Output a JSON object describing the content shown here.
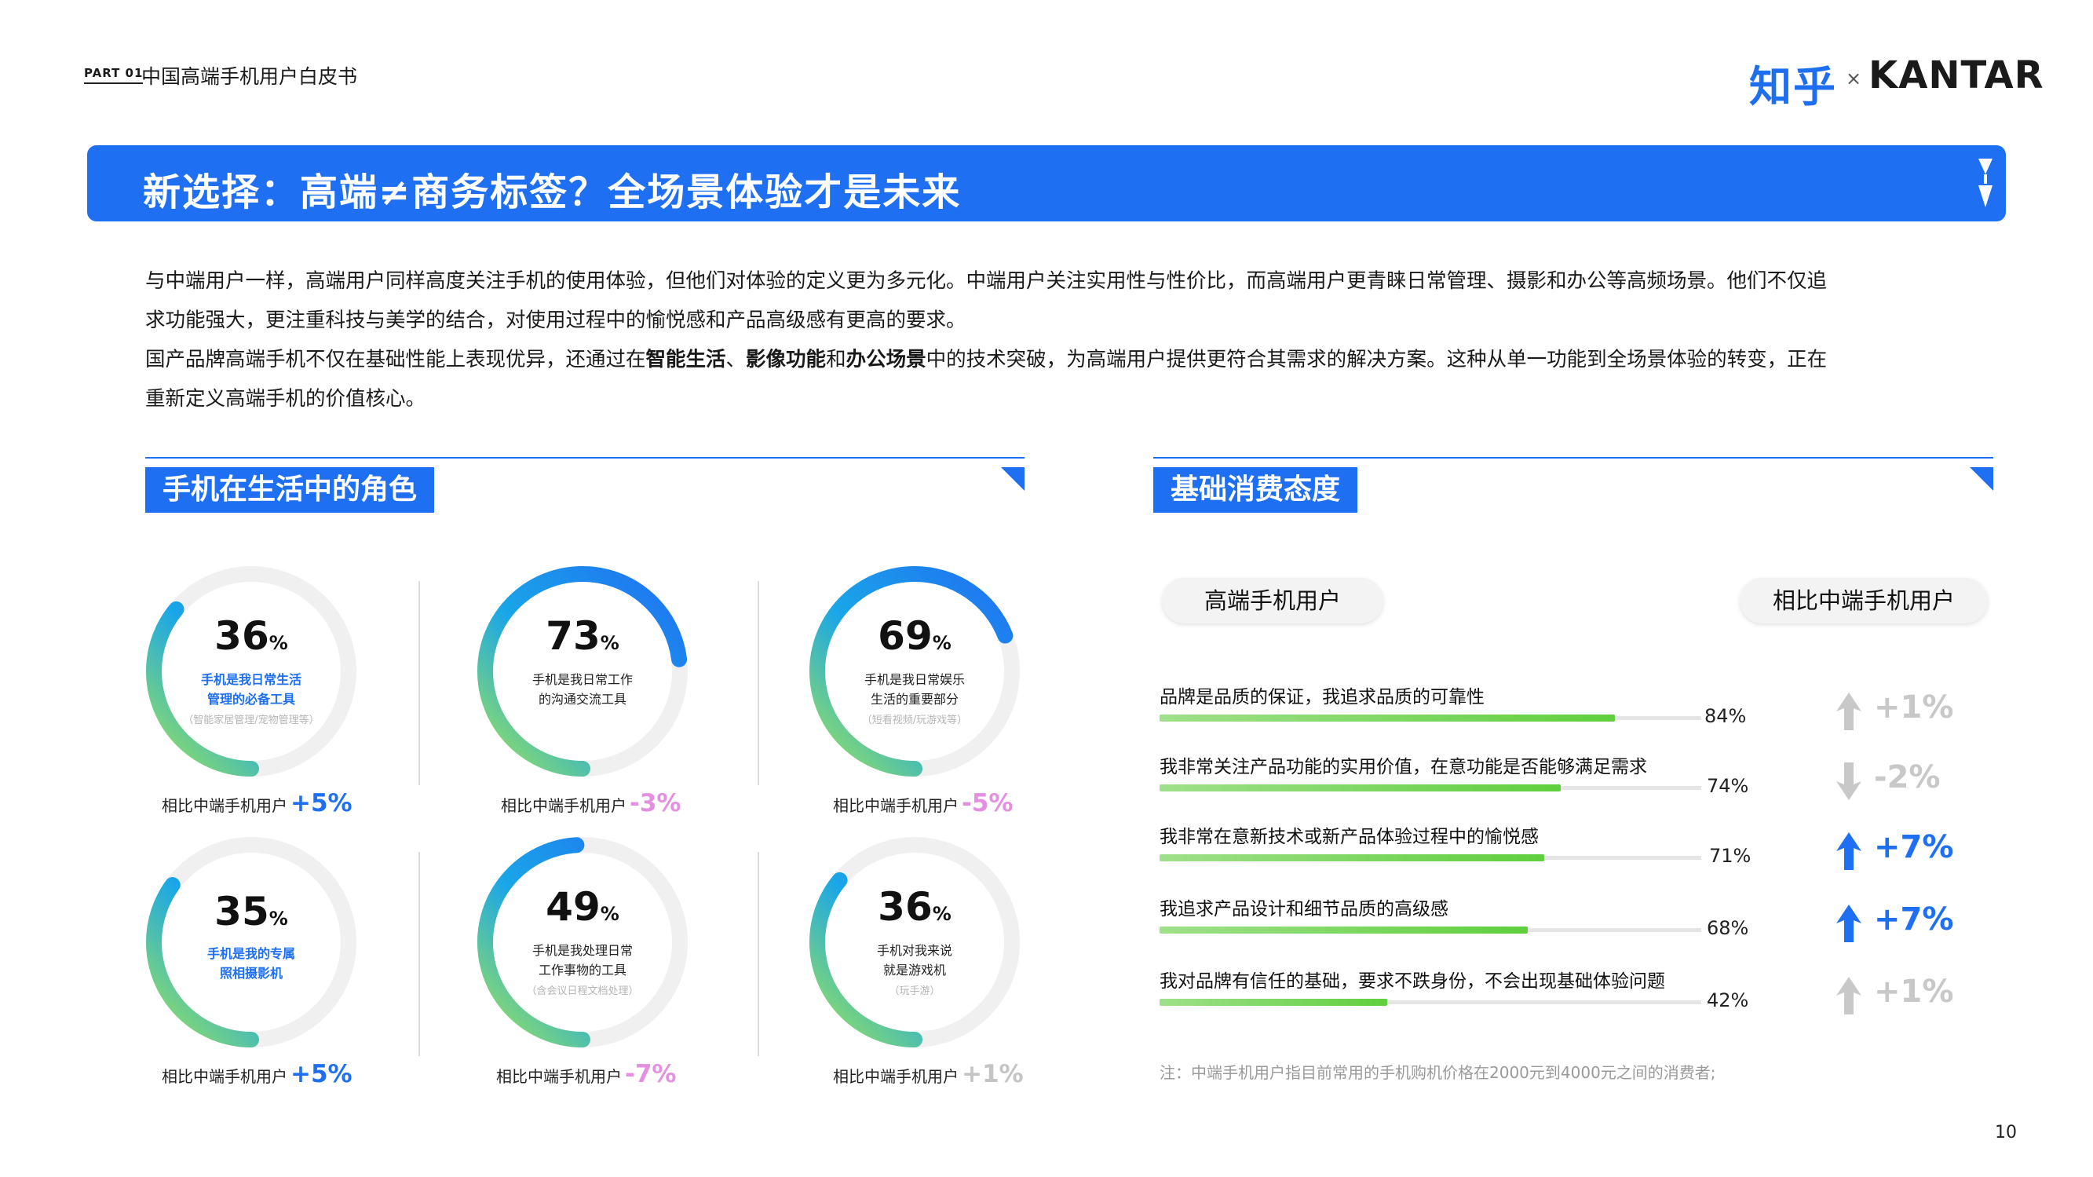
{
  "header": {
    "part_label": "PART 01",
    "doc_title": "中国高端手机用户白皮书",
    "logo_zhihu": "知乎",
    "logo_x": "×",
    "logo_kantar": "KANTAR"
  },
  "banner": {
    "title": "新选择：高端≠商务标签？全场景体验才是未来"
  },
  "intro": {
    "line1": "与中端用户一样，高端用户同样高度关注手机的使用体验，但他们对体验的定义更为多元化。中端用户关注实用性与性价比，而高端用户更青睐日常管理、摄影和办公等高频场景。他们不仅追",
    "line2": "求功能强大，更注重科技与美学的结合，对使用过程中的愉悦感和产品高级感有更高的要求。",
    "line3_a": "国产品牌高端手机不仅在基础性能上表现优异，还通过在",
    "line3_b1": "智能生活",
    "line3_sep1": "、",
    "line3_b2": "影像功能",
    "line3_sep2": "和",
    "line3_b3": "办公场景",
    "line3_c": "中的技术突破，为高端用户提供更符合其需求的解决方案。这种从单一功能到全场景体验的转变，正在",
    "line4": "重新定义高端手机的价值核心。"
  },
  "left_section": {
    "title": "手机在生活中的角色",
    "cards": [
      {
        "value": "36",
        "unit": "%",
        "line1": "手机是我日常生活",
        "line2": "管理的必备工具",
        "sub": "（智能家居管理/宠物管理等）",
        "cmp_label": "相比中端手机用户",
        "delta": "+5%",
        "delta_color": "#1f6ff2"
      },
      {
        "value": "73",
        "unit": "%",
        "line1": "手机是我日常工作",
        "line2": "的沟通交流工具",
        "sub": "",
        "cmp_label": "相比中端手机用户",
        "delta": "-3%",
        "delta_color": "#e58fe0"
      },
      {
        "value": "69",
        "unit": "%",
        "line1": "手机是我日常娱乐",
        "line2": "生活的重要部分",
        "sub": "（短看视频/玩游戏等）",
        "cmp_label": "相比中端手机用户",
        "delta": "-5%",
        "delta_color": "#e58fe0"
      },
      {
        "value": "35",
        "unit": "%",
        "line1": "手机是我的专属",
        "line2": "照相摄影机",
        "sub": "",
        "cmp_label": "相比中端手机用户",
        "delta": "+5%",
        "delta_color": "#1f6ff2"
      },
      {
        "value": "49",
        "unit": "%",
        "line1": "手机是我处理日常",
        "line2": "工作事物的工具",
        "sub": "（含会议日程文档处理）",
        "cmp_label": "相比中端手机用户",
        "delta": "-7%",
        "delta_color": "#e58fe0"
      },
      {
        "value": "36",
        "unit": "%",
        "line1": "手机对我来说",
        "line2": "就是游戏机",
        "sub": "（玩手游）",
        "cmp_label": "相比中端手机用户",
        "delta": "+1%",
        "delta_color": "#c4c4c4"
      }
    ]
  },
  "right_section": {
    "title": "基础消费态度",
    "pill_left": "高端手机用户",
    "pill_right": "相比中端手机用户",
    "rows": [
      {
        "label": "品牌是品质的保证，我追求品质的可靠性",
        "value": 84,
        "pct": "84%",
        "delta": "+1%",
        "dir": "up",
        "delta_color": "#c8c8c8"
      },
      {
        "label": "我非常关注产品功能的实用价值，在意功能是否能够满足需求",
        "value": 74,
        "pct": "74%",
        "delta": "-2%",
        "dir": "down",
        "delta_color": "#c8c8c8"
      },
      {
        "label": "我非常在意新技术或新产品体验过程中的愉悦感",
        "value": 71,
        "pct": "71%",
        "delta": "+7%",
        "dir": "up",
        "delta_color": "#1f6ff2"
      },
      {
        "label": "我追求产品设计和细节品质的高级感",
        "value": 68,
        "pct": "68%",
        "delta": "+7%",
        "dir": "up",
        "delta_color": "#1f6ff2"
      },
      {
        "label": "我对品牌有信任的基础，要求不跌身份，不会出现基础体验问题",
        "value": 42,
        "pct": "42%",
        "delta": "+1%",
        "dir": "up",
        "delta_color": "#c8c8c8"
      }
    ],
    "note": "注：中端手机用户指目前常用的手机购机价格在2000元到4000元之间的消费者;"
  },
  "footer": {
    "page_number": "10"
  },
  "colors": {
    "accent": "#1f6ff2",
    "green": "#8ddf5a",
    "pink": "#e58fe0",
    "grey": "#c8c8c8"
  }
}
